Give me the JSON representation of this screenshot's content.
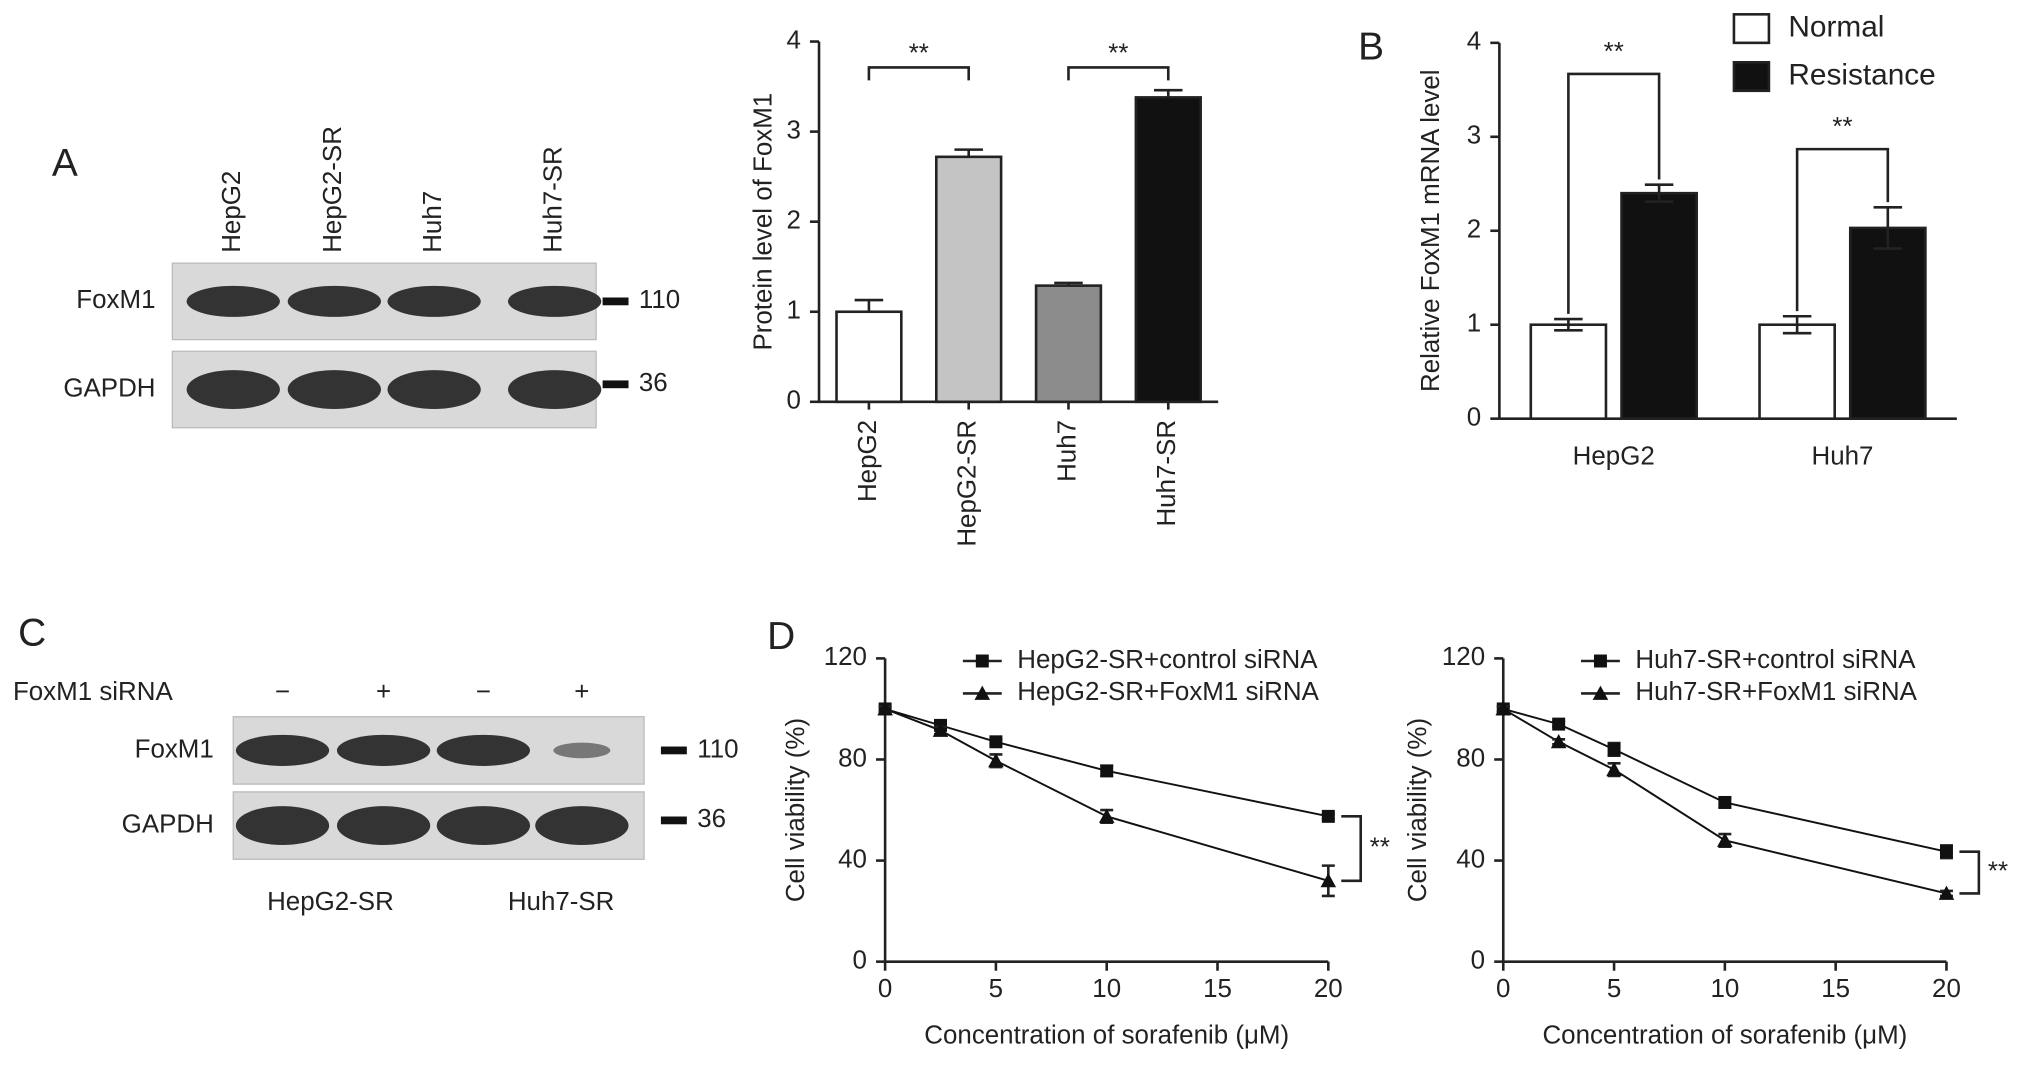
{
  "panel_labels": [
    "A",
    "B",
    "C",
    "D"
  ],
  "blot_a": {
    "lanes": [
      "HepG2",
      "HepG2-SR",
      "Huh7",
      "Huh7-SR"
    ],
    "rows": [
      "FoxM1",
      "GAPDH"
    ],
    "markers": [
      "110",
      "36"
    ]
  },
  "blot_c": {
    "treatment": "FoxM1 siRNA",
    "lanes": [
      "−",
      "+",
      "−",
      "+"
    ],
    "rows": [
      "FoxM1",
      "GAPDH"
    ],
    "markers": [
      "110",
      "36"
    ],
    "groups": [
      "HepG2-SR",
      "Huh7-SR"
    ]
  },
  "chart_data": [
    {
      "type": "bar",
      "y_label": "Protein level of FoxM1",
      "categories": [
        "HepG2",
        "HepG2-SR",
        "Huh7",
        "Huh7-SR"
      ],
      "values": [
        1.0,
        2.72,
        1.29,
        3.38
      ],
      "errors": [
        0.13,
        0.08,
        0.03,
        0.08
      ],
      "colors": [
        "#ffffff",
        "#c4c4c4",
        "#8c8c8c",
        "#111111"
      ],
      "ylim": [
        0,
        4
      ],
      "yticks": [
        0,
        1,
        2,
        3,
        4
      ],
      "significance": [
        {
          "pair": [
            "HepG2",
            "HepG2-SR"
          ],
          "label": "**"
        },
        {
          "pair": [
            "Huh7",
            "Huh7-SR"
          ],
          "label": "**"
        }
      ]
    },
    {
      "type": "grouped_bar",
      "y_label": "Relative FoxM1 mRNA level",
      "categories": [
        "HepG2",
        "Huh7"
      ],
      "series": [
        {
          "name": "Normal",
          "color": "#ffffff",
          "values": [
            1.0,
            1.0
          ],
          "errors": [
            0.06,
            0.09
          ]
        },
        {
          "name": "Resistance",
          "color": "#111111",
          "values": [
            2.4,
            2.03
          ],
          "errors": [
            0.09,
            0.22
          ]
        }
      ],
      "ylim": [
        0,
        4
      ],
      "yticks": [
        0,
        1,
        2,
        3,
        4
      ],
      "legend": "top-right",
      "significance": [
        "**",
        "**"
      ]
    },
    {
      "type": "line",
      "x_label": "Concentration of sorafenib (μM)",
      "y_label": "Cell viability (%)",
      "x": [
        0,
        2.5,
        5,
        10,
        20
      ],
      "series": [
        {
          "name": "HepG2-SR+control siRNA",
          "color": "#111111",
          "marker": "square",
          "values": [
            100,
            93.5,
            87,
            75.5,
            57.5
          ],
          "errors": [
            1,
            1.5,
            1,
            2,
            1
          ]
        },
        {
          "name": "HepG2-SR+FoxM1 siRNA",
          "color": "#111111",
          "marker": "triangle",
          "values": [
            100,
            91.5,
            79.5,
            57.5,
            32
          ],
          "errors": [
            1,
            1.5,
            2.5,
            2.5,
            6
          ]
        }
      ],
      "xlim": [
        0,
        20
      ],
      "xticks": [
        0,
        5,
        10,
        15,
        20
      ],
      "ylim": [
        0,
        120
      ],
      "yticks": [
        0,
        40,
        80,
        120
      ],
      "significance": "**"
    },
    {
      "type": "line",
      "x_label": "Concentration of sorafenib (μM)",
      "y_label": "Cell viability (%)",
      "x": [
        0,
        2.5,
        5,
        10,
        20
      ],
      "series": [
        {
          "name": "Huh7-SR+control siRNA",
          "color": "#111111",
          "marker": "square",
          "values": [
            100,
            94,
            84,
            63,
            43.5
          ],
          "errors": [
            1,
            1,
            2.5,
            2,
            2.5
          ]
        },
        {
          "name": "Huh7-SR+FoxM1 siRNA",
          "color": "#111111",
          "marker": "triangle",
          "values": [
            100,
            87,
            76,
            48,
            27
          ],
          "errors": [
            1,
            1,
            2.5,
            2.5,
            1
          ]
        }
      ],
      "xlim": [
        0,
        20
      ],
      "xticks": [
        0,
        5,
        10,
        15,
        20
      ],
      "ylim": [
        0,
        120
      ],
      "yticks": [
        0,
        40,
        80,
        120
      ],
      "significance": "**"
    }
  ]
}
